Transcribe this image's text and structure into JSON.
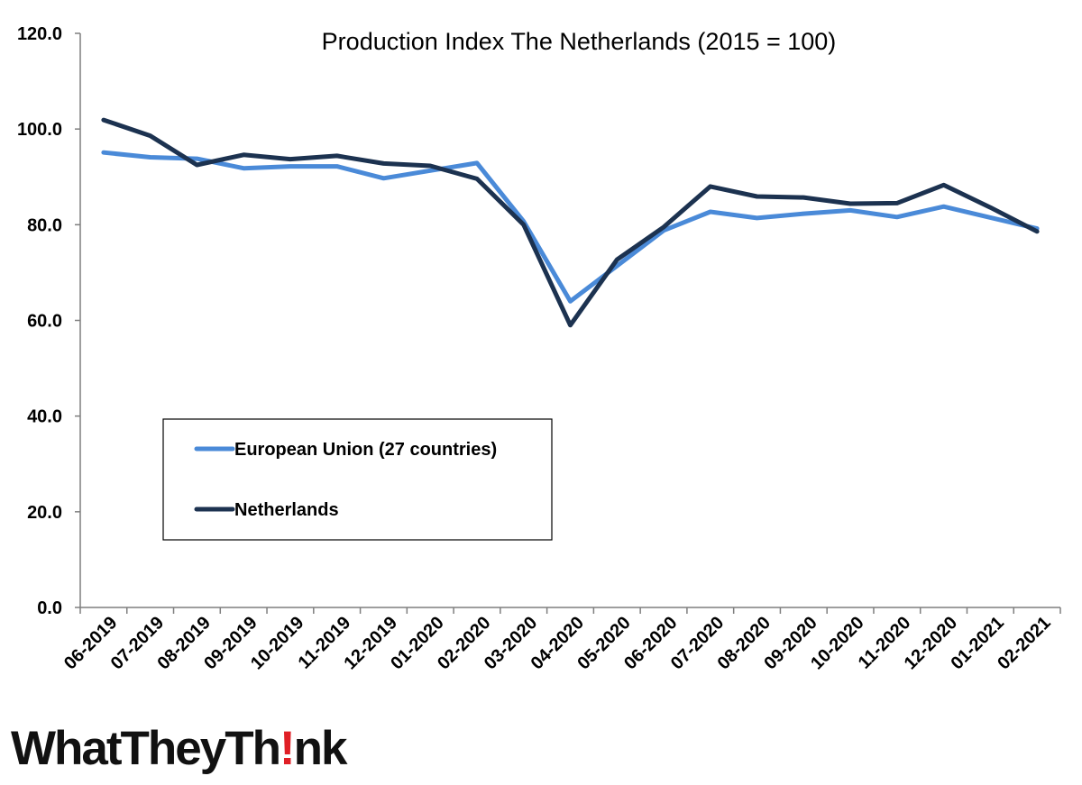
{
  "chart_data": {
    "type": "line",
    "title": "Production Index The Netherlands (2015 = 100)",
    "xlabel": "",
    "ylabel": "",
    "categories": [
      "06-2019",
      "07-2019",
      "08-2019",
      "09-2019",
      "10-2019",
      "11-2019",
      "12-2019",
      "01-2020",
      "02-2020",
      "03-2020",
      "04-2020",
      "05-2020",
      "06-2020",
      "07-2020",
      "08-2020",
      "09-2020",
      "10-2020",
      "11-2020",
      "12-2020",
      "01-2021",
      "02-2021"
    ],
    "ylim": [
      0,
      120
    ],
    "yticks": [
      "0.0",
      "20.0",
      "40.0",
      "60.0",
      "80.0",
      "100.0",
      "120.0"
    ],
    "grid": false,
    "legend_position": "inside-lower-left",
    "series": [
      {
        "name": "European Union (27 countries)",
        "color": "#4a8ad8",
        "values": [
          95.1,
          94.1,
          93.8,
          91.8,
          92.2,
          92.2,
          89.7,
          91.3,
          92.9,
          80.7,
          64.0,
          71.4,
          78.8,
          82.7,
          81.4,
          82.3,
          83.0,
          81.6,
          83.8,
          81.5,
          79.2
        ]
      },
      {
        "name": "Netherlands",
        "color": "#1c3250",
        "values": [
          101.9,
          98.6,
          92.5,
          94.6,
          93.7,
          94.4,
          92.8,
          92.3,
          89.6,
          80.0,
          59.0,
          72.7,
          79.5,
          88.0,
          85.9,
          85.7,
          84.4,
          84.5,
          88.3,
          83.6,
          78.6
        ]
      }
    ]
  },
  "logo": {
    "part1": "WhatTheyTh",
    "bang": "!",
    "part2": "nk"
  }
}
